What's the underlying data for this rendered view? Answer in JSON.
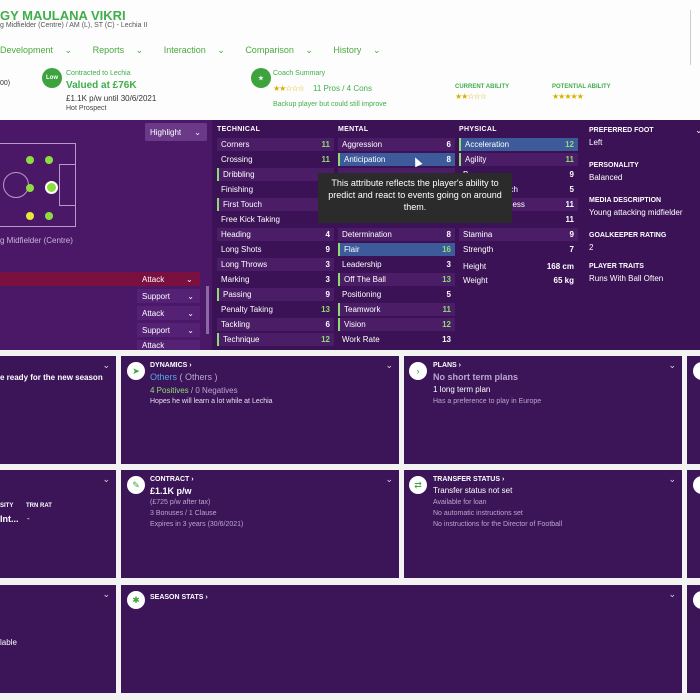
{
  "header": {
    "player_name": "GY MAULANA VIKRI",
    "positions": "g Midfielder (Centre) / AM (L), ST (C) - Lechia II",
    "nav": [
      "Development",
      "Reports",
      "Interaction",
      "Comparison",
      "History"
    ],
    "nav_caret": "⌄",
    "left_cut_value": "00)",
    "reputation": "Hot Prospect",
    "contract_badge": "Low",
    "contract_label": "Contracted to Lechia",
    "contract_value": "Valued at £76K",
    "contract_wage": "£1.1K p/w until 30/6/2021",
    "coach_label": "Coach Summary",
    "coach_stars": "★★☆☆☆",
    "coach_pros": "11 Pros / 4 Cons",
    "coach_note": "Backup player but could still improve",
    "current_ability_label": "CURRENT ABILITY",
    "current_ability_stars": "★★☆☆☆",
    "potential_ability_label": "POTENTIAL ABILITY",
    "potential_ability_stars": "★★★★★",
    "accent_color": "#3fae4b"
  },
  "pitch": {
    "highlight_label": "Highlight",
    "position_label": "g Midfielder (Centre)",
    "roles": [
      "Attack",
      "Support",
      "Attack",
      "Support",
      "Attack"
    ]
  },
  "attributes": {
    "technical_title": "TECHNICAL",
    "mental_title": "MENTAL",
    "physical_title": "PHYSICAL",
    "technical": [
      {
        "name": "Corners",
        "value": "11"
      },
      {
        "name": "Crossing",
        "value": "11"
      },
      {
        "name": "Dribbling",
        "value": ""
      },
      {
        "name": "Finishing",
        "value": ""
      },
      {
        "name": "First Touch",
        "value": ""
      },
      {
        "name": "Free Kick Taking",
        "value": ""
      },
      {
        "name": "Heading",
        "value": "4"
      },
      {
        "name": "Long Shots",
        "value": "9"
      },
      {
        "name": "Long Throws",
        "value": "3"
      },
      {
        "name": "Marking",
        "value": "3"
      },
      {
        "name": "Passing",
        "value": "9"
      },
      {
        "name": "Penalty Taking",
        "value": "13"
      },
      {
        "name": "Tackling",
        "value": "6"
      },
      {
        "name": "Technique",
        "value": "12"
      }
    ],
    "mental": [
      {
        "name": "Aggression",
        "value": "6"
      },
      {
        "name": "Anticipation",
        "value": "8"
      },
      {
        "name": "",
        "value": ""
      },
      {
        "name": "",
        "value": ""
      },
      {
        "name": "",
        "value": ""
      },
      {
        "name": "",
        "value": ""
      },
      {
        "name": "Determination",
        "value": "8"
      },
      {
        "name": "Flair",
        "value": "16"
      },
      {
        "name": "Leadership",
        "value": "3"
      },
      {
        "name": "Off The Ball",
        "value": "13"
      },
      {
        "name": "Positioning",
        "value": "5"
      },
      {
        "name": "Teamwork",
        "value": "11"
      },
      {
        "name": "Vision",
        "value": "12"
      },
      {
        "name": "Work Rate",
        "value": "13"
      }
    ],
    "physical": [
      {
        "name": "Acceleration",
        "value": "12"
      },
      {
        "name": "Agility",
        "value": "11"
      },
      {
        "name": "B",
        "value": "9"
      },
      {
        "name": "ach",
        "value": "5"
      },
      {
        "name": "ness",
        "value": "11"
      },
      {
        "name": "",
        "value": "11"
      },
      {
        "name": "Stamina",
        "value": "9"
      },
      {
        "name": "Strength",
        "value": "7"
      }
    ],
    "height_label": "Height",
    "height_value": "168 cm",
    "weight_label": "Weight",
    "weight_value": "65 kg"
  },
  "tooltip": {
    "text": "This attribute reflects the player's ability to predict and react to events going on around them."
  },
  "profile": {
    "preferred_foot_label": "PREFERRED FOOT",
    "preferred_foot": "Left",
    "personality_label": "PERSONALITY",
    "personality": "Balanced",
    "media_label": "MEDIA DESCRIPTION",
    "media": "Young attacking midfielder",
    "gk_label": "GOALKEEPER RATING",
    "gk": "2",
    "traits_label": "PLAYER TRAITS",
    "traits": "Runs With Ball Often"
  },
  "cards": {
    "left1_text": "e ready for the new season",
    "dynamics_title": "DYNAMICS ›",
    "dynamics_group": "Others",
    "dynamics_group2": "( Others )",
    "dynamics_pos": "4 Positives",
    "dynamics_neg": "/ 0 Negatives",
    "dynamics_note": "Hopes he will learn a lot while at Lechia",
    "plans_title": "PLANS ›",
    "plans_headline": "No short term plans",
    "plans_long": "1 long term plan",
    "plans_note": "Has a preference to play in Europe",
    "left2_label1": "SITY",
    "left2_label2": "TRN RAT",
    "left2_value1": "Int...",
    "left2_value2": "-",
    "contract_title": "CONTRACT ›",
    "contract_wage": "£1.1K p/w",
    "contract_tax": "(£725 p/w after tax)",
    "contract_bonus": "3 Bonuses / 1 Clause",
    "contract_expiry": "Expires in 3 years (30/6/2021)",
    "transfer_title": "TRANSFER STATUS ›",
    "transfer_status": "Transfer status not set",
    "transfer_loan": "Available for loan",
    "transfer_auto": "No automatic instructions set",
    "transfer_dof": "No instructions for the Director of Football",
    "left3_text": "lable",
    "season_title": "SEASON STATS ›"
  }
}
